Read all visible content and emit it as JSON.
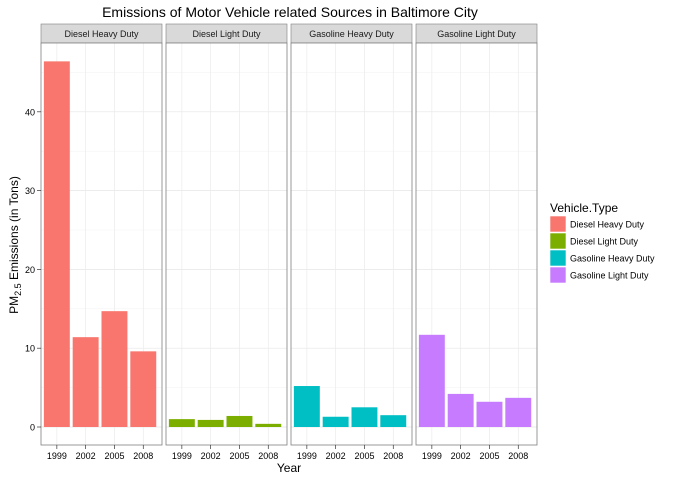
{
  "chart_data": {
    "type": "bar",
    "title": "Emissions of Motor Vehicle related Sources in Baltimore City",
    "xlabel": "Year",
    "ylabel": {
      "main": "PM",
      "subscript": "2.5",
      "rest": " Emissions (in Tons)"
    },
    "categories": [
      "1999",
      "2002",
      "2005",
      "2008"
    ],
    "ylim": [
      0,
      48
    ],
    "yticks": [
      0,
      10,
      20,
      30,
      40
    ],
    "grid": true,
    "legend_title": "Vehicle.Type",
    "legend_position": "right",
    "panels": [
      {
        "name": "Diesel Heavy Duty",
        "color": "#F8766D",
        "values": [
          46.4,
          11.4,
          14.7,
          9.6
        ]
      },
      {
        "name": "Diesel Light Duty",
        "color": "#7CAE00",
        "values": [
          1.0,
          0.9,
          1.4,
          0.4
        ]
      },
      {
        "name": "Gasoline Heavy Duty",
        "color": "#00BFC4",
        "values": [
          5.2,
          1.3,
          2.5,
          1.5
        ]
      },
      {
        "name": "Gasoline Light Duty",
        "color": "#C77CFF",
        "values": [
          11.7,
          4.2,
          3.2,
          3.7
        ]
      }
    ]
  }
}
